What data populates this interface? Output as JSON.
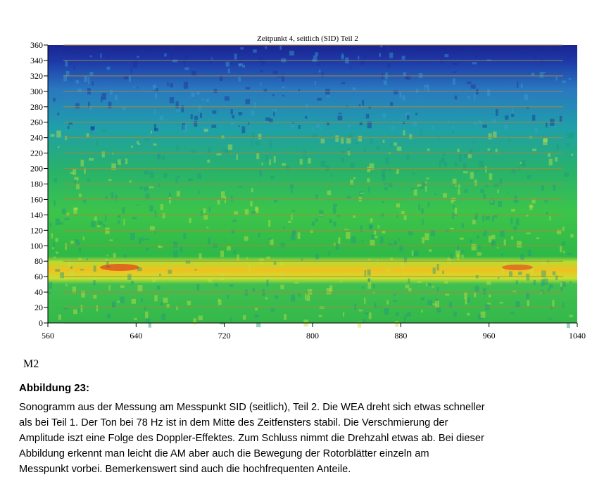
{
  "chart_data": {
    "type": "spectrogram",
    "title": "Zeitpunkt 4, seitlich (SID) Teil 2",
    "xlim": [
      560,
      1040
    ],
    "xticks": [
      560,
      640,
      720,
      800,
      880,
      960,
      1040
    ],
    "ylim": [
      0,
      360
    ],
    "yticks": [
      0,
      20,
      40,
      60,
      80,
      100,
      120,
      140,
      160,
      180,
      200,
      220,
      240,
      260,
      280,
      300,
      320,
      340,
      360
    ],
    "grid": true,
    "grid_color": "#a88a3a"
  },
  "label": "M2",
  "caption": {
    "heading": "Abbildung 23:",
    "lines": [
      "Sonogramm aus der Messung am Messpunkt SID (seitlich), Teil 2. Die WEA dreht sich etwas schneller",
      "als bei Teil 1. Der Ton bei 78 Hz ist in dem Mitte des Zeitfensters stabil. Die Verschmierung der",
      "Amplitude iszt eine Folge des Doppler-Effektes. Zum Schluss nimmt die Drehzahl etwas ab. Bei dieser",
      "Abbildung erkennt man leicht die AM aber auch die Bewegung der Rotorblätter einzeln am",
      "Messpunkt vorbei. Bemerkenswert sind auch die hochfrequenten Anteile."
    ]
  }
}
